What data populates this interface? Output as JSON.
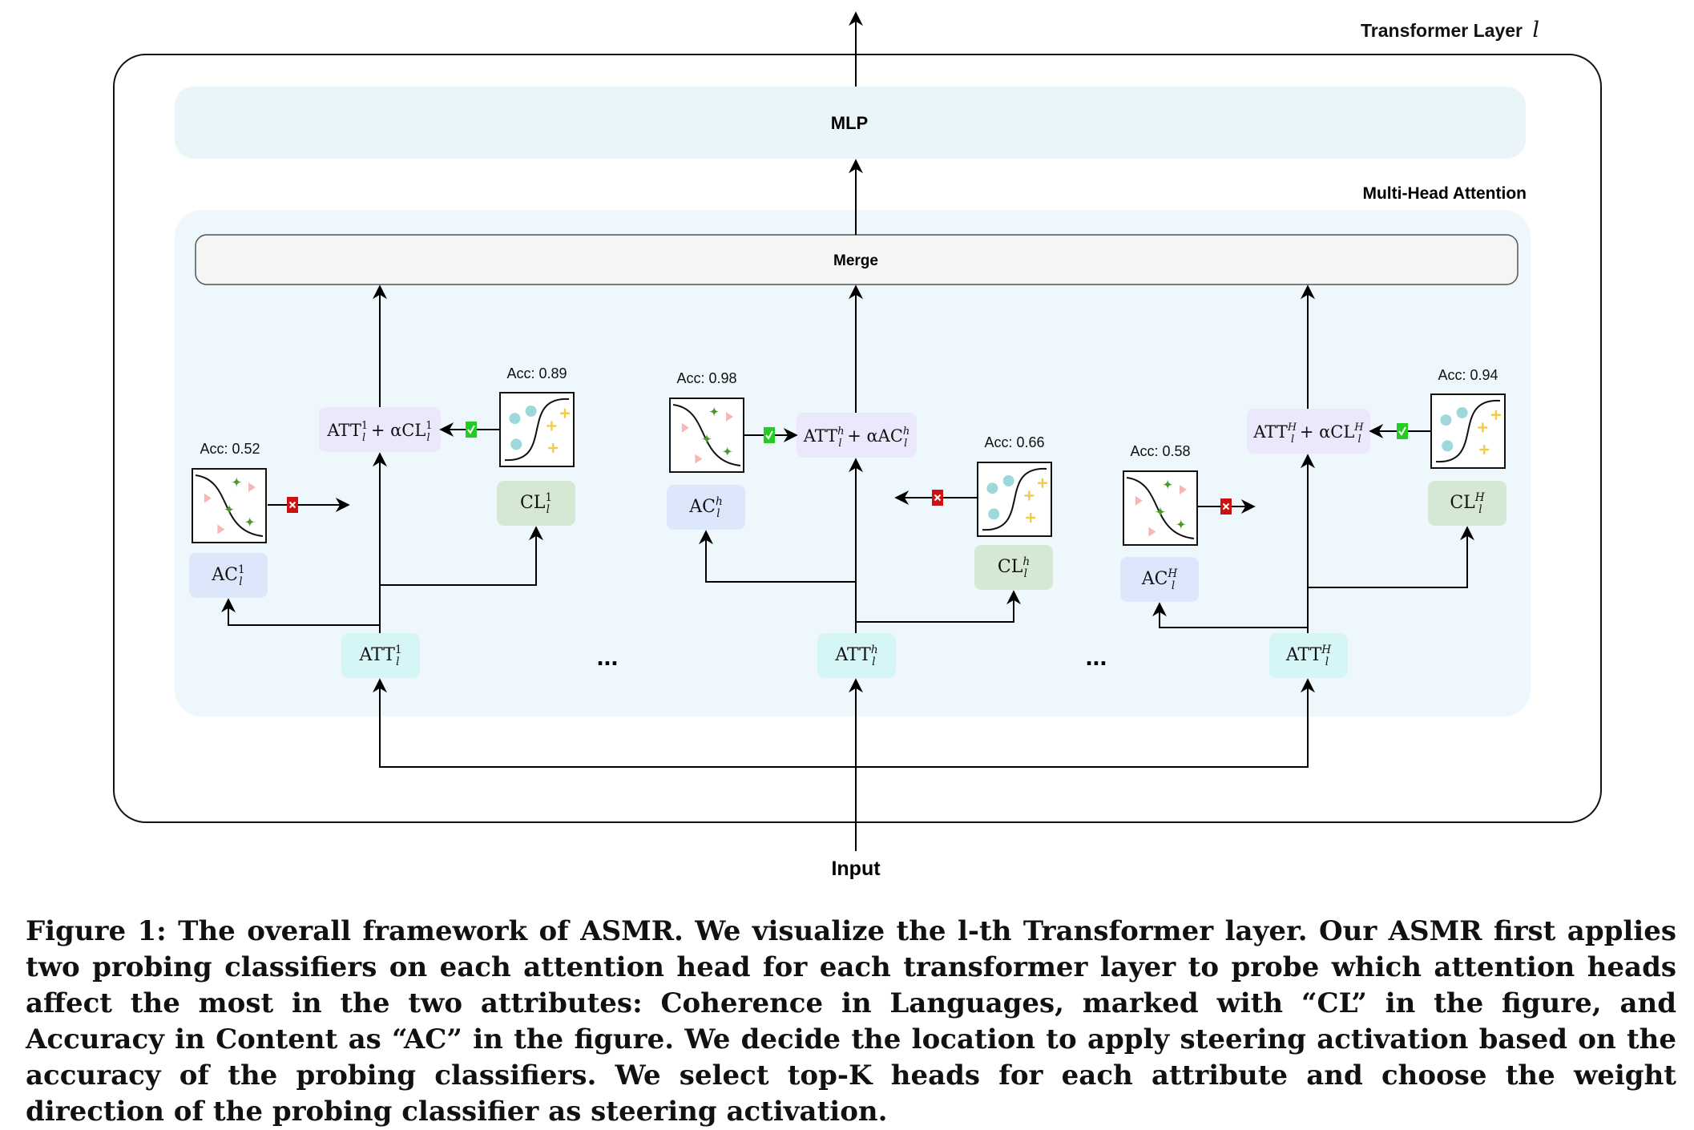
{
  "layer_title": "Transformer Layer",
  "layer_index": "l",
  "mlp_label": "MLP",
  "mha_label": "Multi-Head Attention",
  "merge_label": "Merge",
  "input_label": "Input",
  "ellipsis": "...",
  "heads": [
    {
      "att": {
        "base": "ATT",
        "sub": "l",
        "sup": "1"
      },
      "ac": {
        "base": "AC",
        "sub": "l",
        "sup": "1"
      },
      "cl": {
        "base": "CL",
        "sub": "l",
        "sup": "1"
      },
      "steer": {
        "lhs": "ATT",
        "sub": "l",
        "sup": "1",
        "op": "+ α",
        "attr": "CL",
        "attr_sub": "l",
        "attr_sup": "1"
      },
      "ac_acc": "Acc: 0.52",
      "ac_selected": false,
      "cl_acc": "Acc: 0.89",
      "cl_selected": true
    },
    {
      "att": {
        "base": "ATT",
        "sub": "l",
        "sup": "h"
      },
      "ac": {
        "base": "AC",
        "sub": "l",
        "sup": "h"
      },
      "cl": {
        "base": "CL",
        "sub": "l",
        "sup": "h"
      },
      "steer": {
        "lhs": "ATT",
        "sub": "l",
        "sup": "h",
        "op": "+ α",
        "attr": "AC",
        "attr_sub": "l",
        "attr_sup": "h"
      },
      "ac_acc": "Acc: 0.98",
      "ac_selected": true,
      "cl_acc": "Acc: 0.66",
      "cl_selected": false
    },
    {
      "att": {
        "base": "ATT",
        "sub": "l",
        "sup": "H"
      },
      "ac": {
        "base": "AC",
        "sub": "l",
        "sup": "H"
      },
      "cl": {
        "base": "CL",
        "sub": "l",
        "sup": "H"
      },
      "steer": {
        "lhs": "ATT",
        "sub": "l",
        "sup": "H",
        "op": "+ α",
        "attr": "CL",
        "attr_sub": "l",
        "attr_sup": "H"
      },
      "ac_acc": "Acc: 0.58",
      "ac_selected": false,
      "cl_acc": "Acc: 0.94",
      "cl_selected": true
    }
  ],
  "caption": {
    "prefix": "Figure 1:",
    "text": "The overall framework of ASMR. We visualize the l-th Transformer layer. Our ASMR first applies two probing classifiers on each attention head for each transformer layer to probe which attention heads affect the most in the two attributes: Coherence in Languages, marked with “CL” in the figure, and Accuracy in Content as “AC” in the figure. We decide the location to apply steering activation based on the accuracy of the probing classifiers. We select top-K heads for each attribute and choose the weight direction of the probing classifier as steering activation."
  },
  "colors": {
    "mlp_fill": "#eaf5fa",
    "mha_fill": "#eef7fb",
    "merge_fill": "#f5f5f5",
    "att_fill": "#d6f5f6",
    "ac_fill": "#dde7fb",
    "cl_fill": "#d5e8d4",
    "steer_fill": "#ece8fb",
    "check": "#22cc22",
    "cross": "#cc1111",
    "triangle": "#f4b8b8",
    "star_green": "#4a9a2a",
    "dot_cyan": "#9fd8dc",
    "plus_yellow": "#f2cc44"
  },
  "icons": {
    "selected": "check-icon",
    "rejected": "cross-icon"
  }
}
